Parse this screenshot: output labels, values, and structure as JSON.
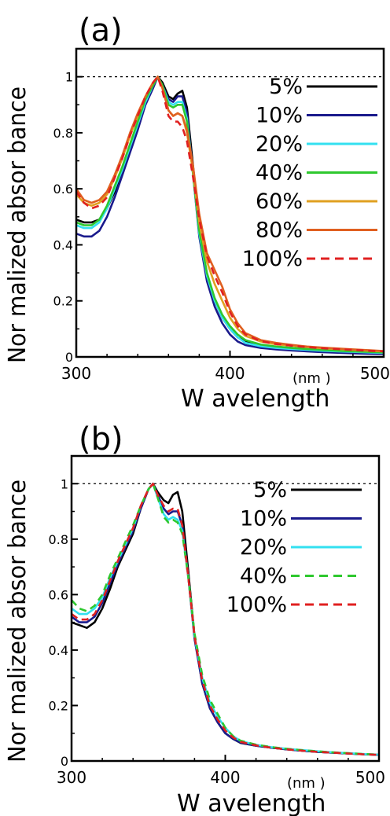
{
  "chart_data": [
    {
      "type": "line",
      "panel_label": "(a)",
      "xlabel": "W avelength",
      "x_unit": "(nm )",
      "ylabel": "Nor malized absor bance",
      "xlim": [
        300,
        500
      ],
      "ylim": [
        0,
        1.1
      ],
      "x_ticks": [
        300,
        400,
        500
      ],
      "x_tick_labels": [
        "300",
        "400",
        "500"
      ],
      "y_ticks": [
        0,
        0.2,
        0.4,
        0.6,
        0.8,
        1
      ],
      "y_tick_labels": [
        "0",
        "0.2",
        "0.4",
        "0.6",
        "0.8",
        "1"
      ],
      "reference_line": 1,
      "legend_position": "top-right",
      "x": [
        300,
        305,
        310,
        315,
        320,
        325,
        330,
        335,
        340,
        345,
        350,
        353,
        356,
        360,
        363,
        366,
        369,
        372,
        376,
        380,
        385,
        390,
        395,
        400,
        405,
        410,
        420,
        430,
        440,
        450,
        460,
        470,
        480,
        490,
        500
      ],
      "series": [
        {
          "name": "5%",
          "color": "#000000",
          "dash": "solid",
          "values": [
            0.49,
            0.48,
            0.48,
            0.49,
            0.53,
            0.59,
            0.66,
            0.74,
            0.82,
            0.91,
            0.97,
            1.0,
            0.98,
            0.93,
            0.92,
            0.94,
            0.95,
            0.89,
            0.68,
            0.45,
            0.29,
            0.2,
            0.14,
            0.1,
            0.07,
            0.055,
            0.042,
            0.036,
            0.032,
            0.028,
            0.025,
            0.022,
            0.02,
            0.017,
            0.015
          ]
        },
        {
          "name": "10%",
          "color": "#1a1a8c",
          "dash": "solid",
          "values": [
            0.44,
            0.43,
            0.43,
            0.45,
            0.5,
            0.57,
            0.65,
            0.73,
            0.81,
            0.9,
            0.96,
            1.0,
            0.97,
            0.92,
            0.91,
            0.93,
            0.93,
            0.87,
            0.65,
            0.43,
            0.27,
            0.18,
            0.12,
            0.08,
            0.055,
            0.042,
            0.032,
            0.027,
            0.023,
            0.02,
            0.017,
            0.015,
            0.013,
            0.011,
            0.01
          ]
        },
        {
          "name": "20%",
          "color": "#33e0f0",
          "dash": "solid",
          "values": [
            0.47,
            0.46,
            0.46,
            0.48,
            0.53,
            0.6,
            0.67,
            0.75,
            0.83,
            0.91,
            0.97,
            1.0,
            0.97,
            0.91,
            0.9,
            0.91,
            0.91,
            0.85,
            0.65,
            0.44,
            0.29,
            0.2,
            0.14,
            0.1,
            0.07,
            0.05,
            0.038,
            0.032,
            0.028,
            0.025,
            0.022,
            0.02,
            0.018,
            0.016,
            0.014
          ]
        },
        {
          "name": "40%",
          "color": "#2ec82e",
          "dash": "solid",
          "values": [
            0.48,
            0.47,
            0.47,
            0.49,
            0.54,
            0.61,
            0.68,
            0.76,
            0.84,
            0.92,
            0.97,
            1.0,
            0.97,
            0.9,
            0.89,
            0.9,
            0.9,
            0.84,
            0.65,
            0.45,
            0.3,
            0.21,
            0.15,
            0.11,
            0.08,
            0.06,
            0.044,
            0.037,
            0.032,
            0.028,
            0.025,
            0.022,
            0.02,
            0.018,
            0.016
          ]
        },
        {
          "name": "60%",
          "color": "#e0a020",
          "dash": "solid",
          "values": [
            0.58,
            0.55,
            0.54,
            0.55,
            0.58,
            0.64,
            0.71,
            0.79,
            0.86,
            0.93,
            0.98,
            1.0,
            0.96,
            0.88,
            0.86,
            0.87,
            0.86,
            0.8,
            0.66,
            0.48,
            0.34,
            0.26,
            0.2,
            0.14,
            0.1,
            0.075,
            0.055,
            0.045,
            0.04,
            0.035,
            0.031,
            0.028,
            0.025,
            0.022,
            0.02
          ]
        },
        {
          "name": "80%",
          "color": "#e06020",
          "dash": "solid",
          "values": [
            0.6,
            0.56,
            0.55,
            0.56,
            0.59,
            0.65,
            0.72,
            0.8,
            0.87,
            0.93,
            0.98,
            1.0,
            0.96,
            0.88,
            0.86,
            0.87,
            0.86,
            0.81,
            0.68,
            0.51,
            0.37,
            0.31,
            0.25,
            0.17,
            0.12,
            0.085,
            0.06,
            0.05,
            0.043,
            0.037,
            0.033,
            0.03,
            0.027,
            0.024,
            0.021
          ]
        },
        {
          "name": "100%",
          "color": "#e02020",
          "dash": "dashed",
          "values": [
            0.59,
            0.55,
            0.53,
            0.54,
            0.57,
            0.64,
            0.71,
            0.79,
            0.86,
            0.93,
            0.98,
            1.0,
            0.95,
            0.86,
            0.84,
            0.84,
            0.82,
            0.77,
            0.64,
            0.49,
            0.36,
            0.29,
            0.23,
            0.16,
            0.11,
            0.08,
            0.056,
            0.046,
            0.04,
            0.035,
            0.031,
            0.028,
            0.025,
            0.022,
            0.02
          ]
        }
      ]
    },
    {
      "type": "line",
      "panel_label": "(b)",
      "xlabel": "W avelength",
      "x_unit": "(nm )",
      "ylabel": "Nor malized absor bance",
      "xlim": [
        300,
        500
      ],
      "ylim": [
        0,
        1.1
      ],
      "x_ticks": [
        300,
        400,
        500
      ],
      "x_tick_labels": [
        "300",
        "400",
        "500"
      ],
      "y_ticks": [
        0,
        0.2,
        0.4,
        0.6,
        0.8,
        1
      ],
      "y_tick_labels": [
        "0",
        "0.2",
        "0.4",
        "0.6",
        "0.8",
        "1"
      ],
      "reference_line": 1,
      "legend_position": "top-right",
      "x": [
        300,
        305,
        310,
        315,
        320,
        325,
        330,
        335,
        340,
        345,
        350,
        353,
        356,
        360,
        363,
        366,
        369,
        372,
        376,
        380,
        385,
        390,
        395,
        400,
        405,
        410,
        420,
        430,
        440,
        450,
        460,
        470,
        480,
        490,
        500
      ],
      "series": [
        {
          "name": "5%",
          "color": "#000000",
          "dash": "solid",
          "values": [
            0.5,
            0.49,
            0.48,
            0.5,
            0.55,
            0.62,
            0.7,
            0.76,
            0.82,
            0.91,
            0.98,
            1.0,
            0.97,
            0.94,
            0.93,
            0.96,
            0.97,
            0.9,
            0.68,
            0.45,
            0.28,
            0.19,
            0.14,
            0.1,
            0.08,
            0.065,
            0.055,
            0.048,
            0.042,
            0.037,
            0.033,
            0.03,
            0.027,
            0.024,
            0.022
          ]
        },
        {
          "name": "10%",
          "color": "#1a1a8c",
          "dash": "solid",
          "values": [
            0.52,
            0.5,
            0.5,
            0.52,
            0.57,
            0.64,
            0.71,
            0.77,
            0.83,
            0.91,
            0.98,
            1.0,
            0.96,
            0.91,
            0.89,
            0.9,
            0.9,
            0.85,
            0.66,
            0.44,
            0.28,
            0.19,
            0.14,
            0.1,
            0.08,
            0.066,
            0.055,
            0.048,
            0.042,
            0.037,
            0.033,
            0.03,
            0.027,
            0.024,
            0.022
          ]
        },
        {
          "name": "20%",
          "color": "#33e0f0",
          "dash": "solid",
          "values": [
            0.55,
            0.53,
            0.53,
            0.55,
            0.59,
            0.66,
            0.72,
            0.78,
            0.84,
            0.92,
            0.98,
            1.0,
            0.95,
            0.89,
            0.87,
            0.88,
            0.87,
            0.83,
            0.66,
            0.45,
            0.3,
            0.21,
            0.16,
            0.12,
            0.09,
            0.072,
            0.058,
            0.05,
            0.044,
            0.039,
            0.035,
            0.031,
            0.028,
            0.025,
            0.023
          ]
        },
        {
          "name": "40%",
          "color": "#2ec82e",
          "dash": "dashed",
          "values": [
            0.58,
            0.55,
            0.54,
            0.56,
            0.6,
            0.67,
            0.73,
            0.79,
            0.85,
            0.92,
            0.98,
            1.0,
            0.95,
            0.88,
            0.86,
            0.87,
            0.86,
            0.82,
            0.66,
            0.46,
            0.31,
            0.22,
            0.17,
            0.12,
            0.09,
            0.073,
            0.059,
            0.05,
            0.044,
            0.039,
            0.035,
            0.031,
            0.028,
            0.025,
            0.023
          ]
        },
        {
          "name": "100%",
          "color": "#e02020",
          "dash": "dashed",
          "values": [
            0.53,
            0.51,
            0.51,
            0.53,
            0.58,
            0.65,
            0.72,
            0.78,
            0.84,
            0.92,
            0.98,
            1.0,
            0.96,
            0.92,
            0.9,
            0.91,
            0.91,
            0.85,
            0.66,
            0.45,
            0.29,
            0.2,
            0.15,
            0.11,
            0.085,
            0.069,
            0.056,
            0.048,
            0.042,
            0.037,
            0.033,
            0.03,
            0.027,
            0.024,
            0.022
          ]
        }
      ]
    }
  ]
}
